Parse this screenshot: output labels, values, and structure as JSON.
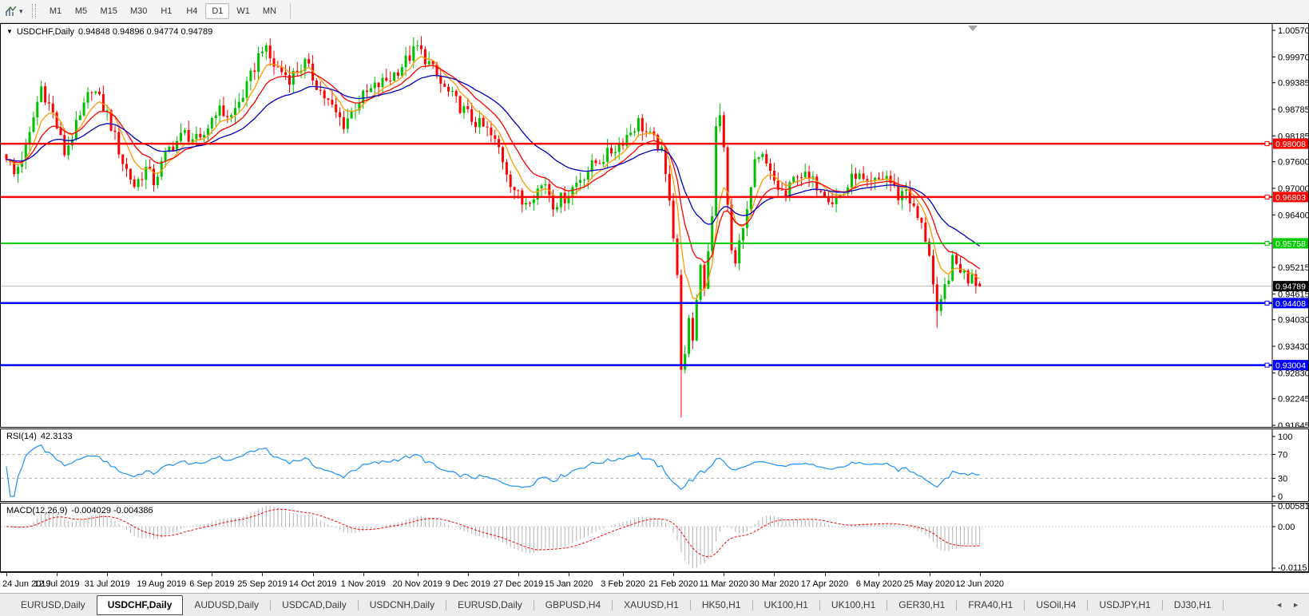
{
  "icons": {
    "collapse_marker": "▼",
    "dropdown_caret": "▾",
    "scroll_left": "◄",
    "scroll_right": "►"
  },
  "toolbar": {
    "timeframes": [
      "M1",
      "M5",
      "M15",
      "M30",
      "H1",
      "H4",
      "D1",
      "W1",
      "MN"
    ],
    "active_timeframe": "D1"
  },
  "chart": {
    "title": "USDCHF,Daily",
    "ohlc": "0.94848 0.94896 0.94774 0.94789"
  },
  "rsi": {
    "label": "RSI(14)",
    "value": "42.3133",
    "ticks": [
      "100",
      "70",
      "30",
      "0"
    ],
    "levels": [
      70,
      30
    ],
    "line_color": "#1e90ff",
    "level_color": "#bdbdbd"
  },
  "macd": {
    "label": "MACD(12,26,9)",
    "values": "-0.004029 -0.004386",
    "ticks": [
      "0.005818",
      "0.00",
      "-0.011514"
    ],
    "tick_values": [
      0.005818,
      0,
      -0.011514
    ],
    "histogram_color": "#b4b4b4",
    "signal_color": "#ff0000"
  },
  "chart_data": {
    "type": "candlestick",
    "symbol": "USDCHF",
    "timeframe": "Daily",
    "title": "USDCHF,Daily 0.94848 0.94896 0.94774 0.94789",
    "y_range": [
      0.91645,
      1.0057
    ],
    "y_ticks": [
      "1.00570",
      "0.99970",
      "0.99385",
      "0.98785",
      "0.98185",
      "0.97600",
      "0.97000",
      "0.96400",
      "0.95215",
      "0.94615",
      "0.94030",
      "0.93430",
      "0.92830",
      "0.92245",
      "0.91645"
    ],
    "current_price": 0.94789,
    "current_price_label": "0.94789",
    "current_price_line_color": "#b8b8b8",
    "price_lines": [
      {
        "label": "0.98008",
        "value": 0.98008,
        "color": "#ff0000",
        "width": 2.5
      },
      {
        "label": "0.96803",
        "value": 0.96803,
        "color": "#ff0000",
        "width": 2.5
      },
      {
        "label": "0.95758",
        "value": 0.95758,
        "color": "#00cc00",
        "width": 2
      },
      {
        "label": "0.94408",
        "value": 0.94408,
        "color": "#0000ff",
        "width": 2.5
      },
      {
        "label": "0.93004",
        "value": 0.93004,
        "color": "#0000ff",
        "width": 2.5
      }
    ],
    "x_labels": [
      "24 Jun 2019",
      "12 Jul 2019",
      "31 Jul 2019",
      "19 Aug 2019",
      "6 Sep 2019",
      "25 Sep 2019",
      "14 Oct 2019",
      "1 Nov 2019",
      "20 Nov 2019",
      "9 Dec 2019",
      "27 Dec 2019",
      "15 Jan 2020",
      "3 Feb 2020",
      "21 Feb 2020",
      "11 Mar 2020",
      "30 Mar 2020",
      "17 Apr 2020",
      "6 May 2020",
      "25 May 2020",
      "12 Jun 2020"
    ],
    "bars_count": 252,
    "up_color": "#00c000",
    "down_color": "#ff0000",
    "close_path_anchors": [
      [
        0,
        0.9775
      ],
      [
        2,
        0.973
      ],
      [
        5,
        0.979
      ],
      [
        9,
        0.993
      ],
      [
        12,
        0.9868
      ],
      [
        15,
        0.978
      ],
      [
        19,
        0.9858
      ],
      [
        22,
        0.993
      ],
      [
        26,
        0.9868
      ],
      [
        30,
        0.976
      ],
      [
        33,
        0.9706
      ],
      [
        36,
        0.9744
      ],
      [
        38,
        0.9715
      ],
      [
        42,
        0.979
      ],
      [
        46,
        0.9824
      ],
      [
        50,
        0.9802
      ],
      [
        54,
        0.9878
      ],
      [
        58,
        0.9862
      ],
      [
        62,
        0.9928
      ],
      [
        66,
        1.0022
      ],
      [
        69,
        0.9978
      ],
      [
        73,
        0.995
      ],
      [
        77,
        0.9982
      ],
      [
        81,
        0.992
      ],
      [
        85,
        0.9868
      ],
      [
        87,
        0.9846
      ],
      [
        91,
        0.99
      ],
      [
        95,
        0.9928
      ],
      [
        99,
        0.995
      ],
      [
        103,
        0.9988
      ],
      [
        106,
        1.0018
      ],
      [
        109,
        0.9982
      ],
      [
        112,
        0.9935
      ],
      [
        116,
        0.9895
      ],
      [
        120,
        0.9856
      ],
      [
        124,
        0.983
      ],
      [
        127,
        0.979
      ],
      [
        130,
        0.9716
      ],
      [
        133,
        0.9666
      ],
      [
        136,
        0.969
      ],
      [
        139,
        0.9714
      ],
      [
        141,
        0.9666
      ],
      [
        144,
        0.968
      ],
      [
        148,
        0.9724
      ],
      [
        152,
        0.9758
      ],
      [
        155,
        0.9776
      ],
      [
        158,
        0.98
      ],
      [
        161,
        0.983
      ],
      [
        163,
        0.985
      ],
      [
        166,
        0.9816
      ],
      [
        169,
        0.9788
      ],
      [
        170,
        0.973
      ],
      [
        171,
        0.9676
      ],
      [
        172,
        0.959
      ],
      [
        173,
        0.9505
      ],
      [
        174,
        0.9287
      ],
      [
        175,
        0.933
      ],
      [
        176,
        0.9396
      ],
      [
        177,
        0.9342
      ],
      [
        178,
        0.945
      ],
      [
        179,
        0.9528
      ],
      [
        180,
        0.9482
      ],
      [
        181,
        0.956
      ],
      [
        182,
        0.964
      ],
      [
        183,
        0.9838
      ],
      [
        184,
        0.986
      ],
      [
        185,
        0.9795
      ],
      [
        186,
        0.966
      ],
      [
        187,
        0.956
      ],
      [
        188,
        0.9526
      ],
      [
        189,
        0.958
      ],
      [
        191,
        0.965
      ],
      [
        193,
        0.9752
      ],
      [
        195,
        0.9768
      ],
      [
        197,
        0.973
      ],
      [
        199,
        0.97
      ],
      [
        201,
        0.9682
      ],
      [
        204,
        0.9738
      ],
      [
        207,
        0.9718
      ],
      [
        210,
        0.9704
      ],
      [
        213,
        0.9672
      ],
      [
        216,
        0.969
      ],
      [
        219,
        0.9734
      ],
      [
        222,
        0.9702
      ],
      [
        225,
        0.9718
      ],
      [
        227,
        0.9728
      ],
      [
        230,
        0.9682
      ],
      [
        232,
        0.97
      ],
      [
        234,
        0.965
      ],
      [
        236,
        0.9614
      ],
      [
        238,
        0.955
      ],
      [
        239,
        0.9482
      ],
      [
        240,
        0.9408
      ],
      [
        241,
        0.9446
      ],
      [
        242,
        0.9476
      ],
      [
        244,
        0.9534
      ],
      [
        246,
        0.952
      ],
      [
        248,
        0.9494
      ],
      [
        249,
        0.9516
      ],
      [
        250,
        0.9487
      ],
      [
        251,
        0.94789
      ]
    ],
    "spike_lows": {
      "174": 0.9182,
      "240": 0.9385
    },
    "spike_highs": {
      "184": 0.9892
    },
    "last_bar": {
      "open": 0.94848,
      "high": 0.94896,
      "low": 0.94774,
      "close": 0.94789
    },
    "ma_lines": [
      {
        "name": "fast",
        "period": 7,
        "color": "#ff9900"
      },
      {
        "name": "medium",
        "period": 14,
        "color": "#ff0000"
      },
      {
        "name": "slow",
        "period": 30,
        "color": "#0000c0"
      }
    ]
  },
  "tabs": {
    "items": [
      "EURUSD,Daily",
      "USDCHF,Daily",
      "AUDUSD,Daily",
      "USDCAD,Daily",
      "USDCNH,Daily",
      "EURUSD,Daily",
      "GBPUSD,H4",
      "XAUUSD,H1",
      "HK50,H1",
      "UK100,H1",
      "UK100,H1",
      "GER30,H1",
      "FRA40,H1",
      "USOil,H4",
      "USDJPY,H1",
      "DJ30,H1"
    ],
    "active_index": 1
  }
}
